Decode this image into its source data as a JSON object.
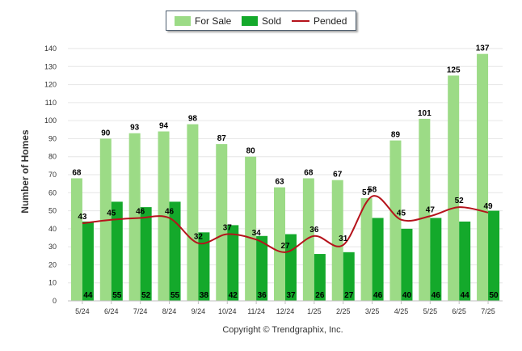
{
  "chart_data": {
    "type": "bar",
    "ylabel": "Number of Homes",
    "ylim": [
      0,
      140
    ],
    "grid": true,
    "legend_placement": "top-center",
    "categories": [
      "5/24",
      "6/24",
      "7/24",
      "8/24",
      "9/24",
      "10/24",
      "11/24",
      "12/24",
      "1/25",
      "2/25",
      "3/25",
      "4/25",
      "5/25",
      "6/25",
      "7/25"
    ],
    "series": [
      {
        "name": "For Sale",
        "kind": "bar",
        "color": "#9cdb86",
        "values": [
          68,
          90,
          93,
          94,
          98,
          87,
          80,
          63,
          68,
          67,
          57,
          89,
          101,
          125,
          137
        ]
      },
      {
        "name": "Sold",
        "kind": "bar",
        "color": "#14a92b",
        "values": [
          44,
          55,
          52,
          55,
          38,
          42,
          36,
          37,
          26,
          27,
          46,
          40,
          46,
          44,
          50
        ]
      },
      {
        "name": "Pended",
        "kind": "line",
        "color": "#b5131b",
        "values": [
          43,
          45,
          46,
          46,
          32,
          37,
          34,
          27,
          36,
          31,
          58,
          45,
          47,
          52,
          49
        ]
      }
    ],
    "y_ticks": [
      0,
      10,
      20,
      30,
      40,
      50,
      60,
      70,
      80,
      90,
      100,
      110,
      120,
      130,
      140
    ]
  },
  "copyright": "Copyright © Trendgraphix, Inc."
}
